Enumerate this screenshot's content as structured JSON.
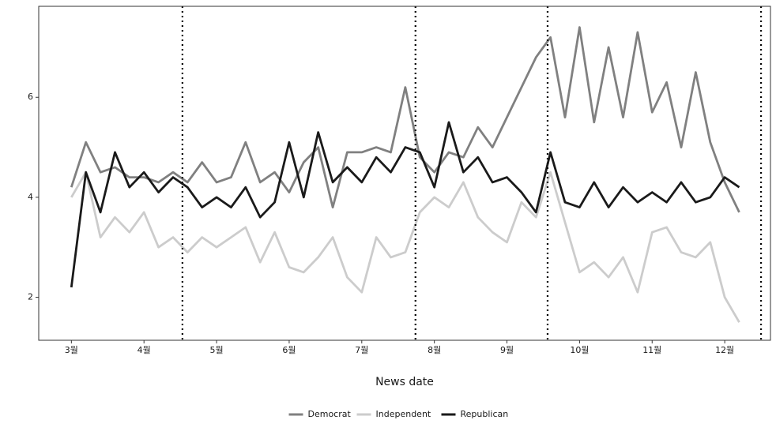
{
  "chart_data": {
    "type": "line",
    "xlabel": "News date",
    "x": [
      3.0,
      3.2,
      3.4,
      3.6,
      3.8,
      4.0,
      4.2,
      4.4,
      4.6,
      4.8,
      5.0,
      5.2,
      5.4,
      5.6,
      5.8,
      6.0,
      6.2,
      6.4,
      6.6,
      6.8,
      7.0,
      7.2,
      7.4,
      7.6,
      7.8,
      8.0,
      8.2,
      8.4,
      8.6,
      8.8,
      9.0,
      9.2,
      9.4,
      9.6,
      9.8,
      10.0,
      10.2,
      10.4,
      10.6,
      10.8,
      11.0,
      11.2,
      11.4,
      11.6,
      11.8,
      12.0,
      12.2
    ],
    "series": [
      {
        "name": "Democrat",
        "color": "#808080",
        "values": [
          4.2,
          5.1,
          4.5,
          4.6,
          4.4,
          4.4,
          4.3,
          4.5,
          4.3,
          4.7,
          4.3,
          4.4,
          5.1,
          4.3,
          4.5,
          4.1,
          4.7,
          5.0,
          3.8,
          4.9,
          4.9,
          5.0,
          4.9,
          6.2,
          4.8,
          4.5,
          4.9,
          4.8,
          5.4,
          5.0,
          5.6,
          6.2,
          6.8,
          7.2,
          5.6,
          7.4,
          5.5,
          7.0,
          5.6,
          7.3,
          5.7,
          6.3,
          5.0,
          6.5,
          5.1,
          4.3,
          3.7
        ]
      },
      {
        "name": "Independent",
        "color": "#cccccc",
        "values": [
          4.0,
          4.5,
          3.2,
          3.6,
          3.3,
          3.7,
          3.0,
          3.2,
          2.9,
          3.2,
          3.0,
          3.2,
          3.4,
          2.7,
          3.3,
          2.6,
          2.5,
          2.8,
          3.2,
          2.4,
          2.1,
          3.2,
          2.8,
          2.9,
          3.7,
          4.0,
          3.8,
          4.3,
          3.6,
          3.3,
          3.1,
          3.9,
          3.6,
          4.5,
          3.5,
          2.5,
          2.7,
          2.4,
          2.8,
          2.1,
          3.3,
          3.4,
          2.9,
          2.8,
          3.1,
          2.0,
          1.5
        ]
      },
      {
        "name": "Republican",
        "color": "#1a1a1a",
        "values": [
          2.2,
          4.5,
          3.7,
          4.9,
          4.2,
          4.5,
          4.1,
          4.4,
          4.2,
          3.8,
          4.0,
          3.8,
          4.2,
          3.6,
          3.9,
          5.1,
          4.0,
          5.3,
          4.3,
          4.6,
          4.3,
          4.8,
          4.5,
          5.0,
          4.9,
          4.2,
          5.5,
          4.5,
          4.8,
          4.3,
          4.4,
          4.1,
          3.7,
          4.9,
          3.9,
          3.8,
          4.3,
          3.8,
          4.2,
          3.9,
          4.1,
          3.9,
          4.3,
          3.9,
          4.0,
          4.4,
          4.2
        ]
      }
    ],
    "xlim": [
      2.55,
      12.63
    ],
    "xticks": [
      {
        "value": 3,
        "label": "3월"
      },
      {
        "value": 4,
        "label": "4월"
      },
      {
        "value": 5,
        "label": "5월"
      },
      {
        "value": 6,
        "label": "6월"
      },
      {
        "value": 7,
        "label": "7월"
      },
      {
        "value": 8,
        "label": "8월"
      },
      {
        "value": 9,
        "label": "9월"
      },
      {
        "value": 10,
        "label": "10월"
      },
      {
        "value": 11,
        "label": "11월"
      },
      {
        "value": 12,
        "label": "12월"
      }
    ],
    "ylim": [
      1.14,
      7.82
    ],
    "yticks": [
      2,
      4,
      6
    ],
    "vlines": [
      4.53,
      7.74,
      9.56,
      12.5
    ],
    "legend": "bottom"
  }
}
